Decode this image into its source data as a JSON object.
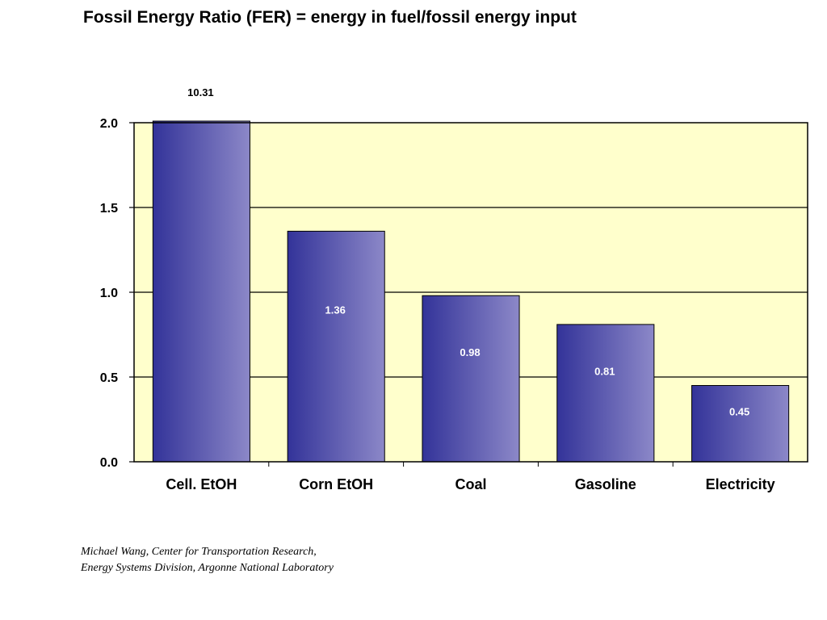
{
  "title": "Fossil Energy Ratio (FER) = energy in fuel/fossil energy input",
  "credit": {
    "line1": "Michael Wang, Center for Transportation Research,",
    "line2": "Energy Systems Division, Argonne National Laboratory"
  },
  "colors": {
    "plot_background": "#ffffcc",
    "bar_dark": "#333399",
    "bar_light": "#8c88c8",
    "gridline": "#000000"
  },
  "chart_data": {
    "type": "bar",
    "title": "Fossil Energy Ratio (FER) = energy in fuel/fossil energy input",
    "xlabel": "",
    "ylabel": "",
    "categories": [
      "Cell. EtOH",
      "Corn EtOH",
      "Coal",
      "Gasoline",
      "Electricity"
    ],
    "values": [
      10.31,
      1.36,
      0.98,
      0.81,
      0.45
    ],
    "value_labels": [
      "10.31",
      "1.36",
      "0.98",
      "0.81",
      "0.45"
    ],
    "ylim": [
      0,
      2.0
    ],
    "yticks": [
      0.0,
      0.5,
      1.0,
      1.5,
      2.0
    ],
    "ytick_labels": [
      "0.0",
      "0.5",
      "1.0",
      "1.5",
      "2.0"
    ],
    "grid": true,
    "legend": "none",
    "note": ""
  }
}
